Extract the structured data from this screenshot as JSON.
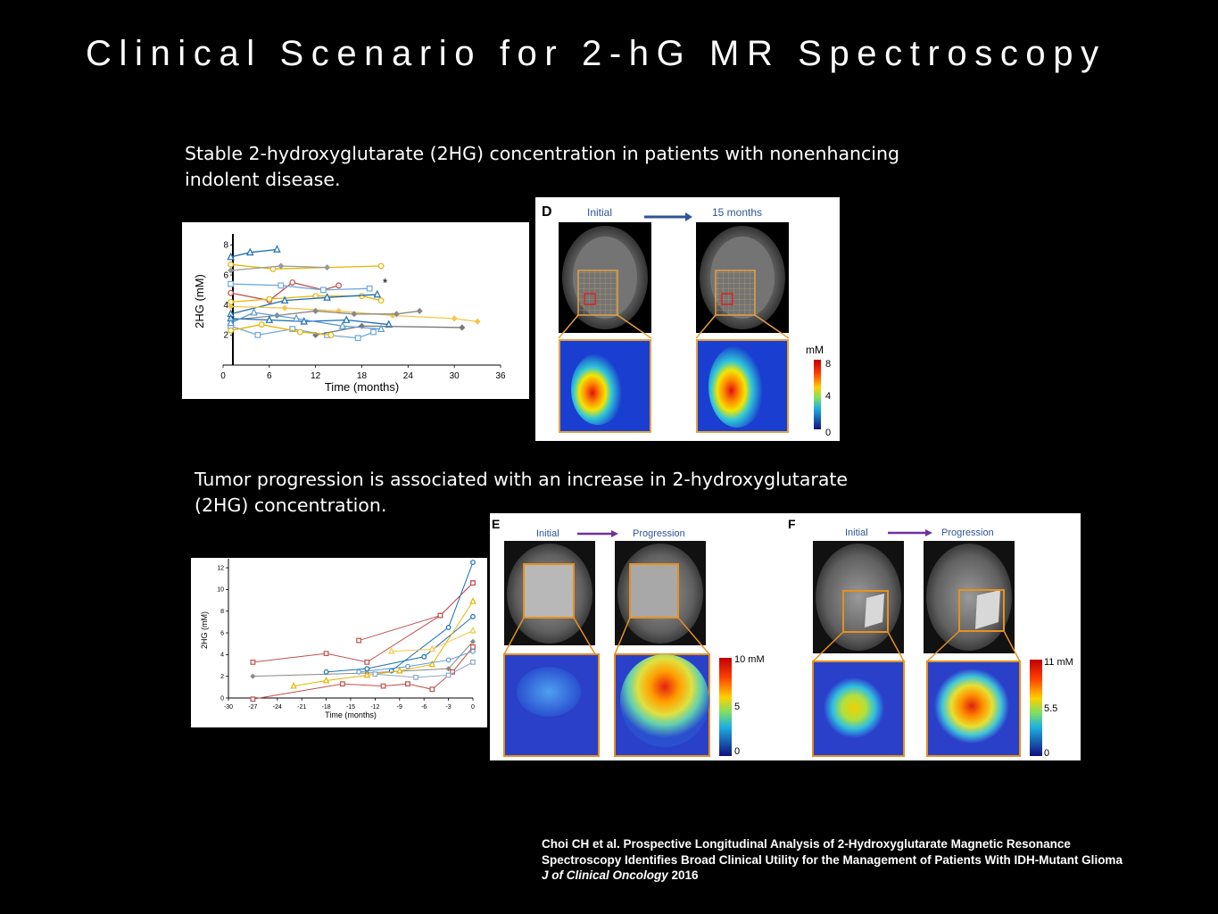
{
  "slide": {
    "title": "Clinical Scenario for 2-hG MR Spectroscopy",
    "caption_stable": "Stable 2-hydroxyglutarate (2HG) concentration in patients with nonenhancing indolent disease.",
    "caption_progression": "Tumor progression is associated with an increase in 2-hydroxyglutarate (2HG) concentration."
  },
  "panel_d": {
    "letter": "D",
    "initial_label": "Initial",
    "later_label": "15 months",
    "scale_unit": "mM",
    "scale_ticks": [
      "8",
      "4",
      "0"
    ]
  },
  "panel_e": {
    "letter": "E",
    "initial_label": "Initial",
    "later_label": "Progression",
    "scale_ticks": [
      "10 mM",
      "5",
      "0"
    ]
  },
  "panel_f": {
    "letter": "F",
    "initial_label": "Initial",
    "later_label": "Progression",
    "scale_ticks": [
      "11 mM",
      "5.5",
      "0"
    ]
  },
  "citation": {
    "line1": "Choi CH et al. Prospective Longitudinal Analysis of 2-Hydroxyglutarate Magnetic Resonance",
    "line2": "Spectroscopy Identifies Broad Clinical Utility for the Management of Patients With IDH-Mutant Glioma",
    "journal": "J of Clinical Oncology",
    "year": " 2016"
  },
  "chart_data": [
    {
      "type": "line",
      "xlabel": "Time (months)",
      "ylabel": "2HG (mM)",
      "xticks": [
        0,
        6,
        12,
        18,
        24,
        30,
        36
      ],
      "yticks": [
        2,
        4,
        6,
        8
      ],
      "xlim": [
        0,
        36
      ],
      "ylim": [
        0,
        8.5
      ],
      "annotation": "*",
      "grid": false,
      "series": [
        {
          "color": "#1a6fb5",
          "marker": "triangle",
          "x": [
            1,
            3.5,
            7
          ],
          "y": [
            7.2,
            7.5,
            7.7
          ]
        },
        {
          "color": "#e6b400",
          "marker": "circle",
          "x": [
            1,
            6.5,
            20.5
          ],
          "y": [
            6.7,
            6.4,
            6.6
          ]
        },
        {
          "color": "#999999",
          "marker": "diamond",
          "x": [
            1,
            7.5,
            13.5
          ],
          "y": [
            6.3,
            6.6,
            6.5
          ]
        },
        {
          "color": "#c0504d",
          "marker": "circle",
          "x": [
            1,
            6,
            9,
            13,
            15
          ],
          "y": [
            4.8,
            4.3,
            5.5,
            5.0,
            5.3
          ]
        },
        {
          "color": "#6fa8dc",
          "marker": "square",
          "x": [
            1,
            7.5,
            13,
            19
          ],
          "y": [
            5.4,
            5.3,
            5.0,
            5.1
          ]
        },
        {
          "color": "#e6b400",
          "marker": "circle",
          "x": [
            1,
            6,
            12,
            18,
            20.5
          ],
          "y": [
            4.2,
            4.4,
            4.6,
            4.6,
            4.3
          ]
        },
        {
          "color": "#1a6fb5",
          "marker": "triangle",
          "x": [
            1,
            8,
            13.5,
            20
          ],
          "y": [
            3.4,
            4.3,
            4.5,
            4.7
          ]
        },
        {
          "color": "#f5c64a",
          "marker": "diamond",
          "x": [
            1,
            8,
            15,
            22,
            30,
            33
          ],
          "y": [
            3.9,
            3.8,
            3.6,
            3.3,
            3.1,
            2.9
          ]
        },
        {
          "color": "#888888",
          "marker": "diamond",
          "x": [
            1,
            7,
            12,
            17,
            22.5,
            25.5
          ],
          "y": [
            3.0,
            3.3,
            3.6,
            3.4,
            3.4,
            3.6
          ]
        },
        {
          "color": "#1a6fb5",
          "marker": "triangle",
          "x": [
            1,
            6,
            10.5,
            16,
            21.5
          ],
          "y": [
            3.1,
            3.0,
            2.9,
            3.0,
            2.7
          ]
        },
        {
          "color": "#6fa8dc",
          "marker": "square",
          "x": [
            1,
            4.5,
            9,
            13.5,
            17.5,
            19.5
          ],
          "y": [
            2.6,
            2.0,
            2.4,
            2.0,
            1.8,
            2.2
          ]
        },
        {
          "color": "#777777",
          "marker": "diamond",
          "x": [
            12,
            18,
            31
          ],
          "y": [
            2.0,
            2.6,
            2.5
          ]
        },
        {
          "color": "#5b9bd5",
          "marker": "triangle",
          "x": [
            1,
            4,
            9.5,
            15.5,
            20.5
          ],
          "y": [
            2.8,
            3.5,
            3.1,
            2.6,
            2.4
          ]
        },
        {
          "color": "#e6b400",
          "marker": "circle",
          "x": [
            1,
            5,
            10,
            14
          ],
          "y": [
            2.3,
            2.7,
            2.2,
            2.0
          ]
        }
      ]
    },
    {
      "type": "line",
      "xlabel": "Time (months)",
      "ylabel": "2HG (mM)",
      "xticks": [
        -30,
        -27,
        -24,
        -21,
        -18,
        -15,
        -12,
        -9,
        -6,
        -3,
        0
      ],
      "yticks": [
        0,
        2,
        4,
        6,
        8,
        10,
        12
      ],
      "xlim": [
        -30,
        0
      ],
      "ylim": [
        0,
        12.5
      ],
      "grid": false,
      "series": [
        {
          "color": "#c0504d",
          "marker": "square",
          "x": [
            -27,
            -18,
            -13,
            -4,
            0
          ],
          "y": [
            3.3,
            4.1,
            3.3,
            7.6,
            10.6
          ]
        },
        {
          "color": "#c0504d",
          "marker": "square",
          "x": [
            -14,
            -4,
            0
          ],
          "y": [
            5.3,
            7.6,
            10.6
          ]
        },
        {
          "color": "#888888",
          "marker": "diamond",
          "x": [
            -27,
            -13,
            -3,
            0
          ],
          "y": [
            2.0,
            2.3,
            2.7,
            5.2
          ]
        },
        {
          "color": "#1a6fb5",
          "marker": "circle",
          "x": [
            -18,
            -13,
            -6,
            0
          ],
          "y": [
            2.4,
            2.7,
            3.8,
            7.5
          ]
        },
        {
          "color": "#1a6fb5",
          "marker": "circle",
          "x": [
            -10,
            -3,
            0
          ],
          "y": [
            2.5,
            6.5,
            12.5
          ]
        },
        {
          "color": "#e6b400",
          "marker": "triangle",
          "x": [
            -22,
            -18,
            -13,
            -9,
            -5,
            0
          ],
          "y": [
            1.1,
            1.6,
            2.1,
            2.5,
            3.1,
            8.9
          ]
        },
        {
          "color": "#f5c64a",
          "marker": "triangle",
          "x": [
            -10,
            -5,
            0
          ],
          "y": [
            4.3,
            4.5,
            6.2
          ]
        },
        {
          "color": "#c0504d",
          "marker": "square",
          "x": [
            -27,
            -16,
            -11,
            -8,
            -5,
            -2.5,
            0
          ],
          "y": [
            -0.1,
            1.3,
            1.1,
            1.3,
            0.8,
            2.4,
            4.7
          ]
        },
        {
          "color": "#8fa8c8",
          "marker": "square",
          "x": [
            -12,
            -7,
            -3,
            0
          ],
          "y": [
            2.2,
            1.9,
            2.1,
            3.3
          ]
        },
        {
          "color": "#5b9bd5",
          "marker": "circle",
          "x": [
            -14,
            -8,
            -3,
            0
          ],
          "y": [
            2.4,
            2.9,
            3.5,
            4.3
          ]
        }
      ]
    }
  ]
}
